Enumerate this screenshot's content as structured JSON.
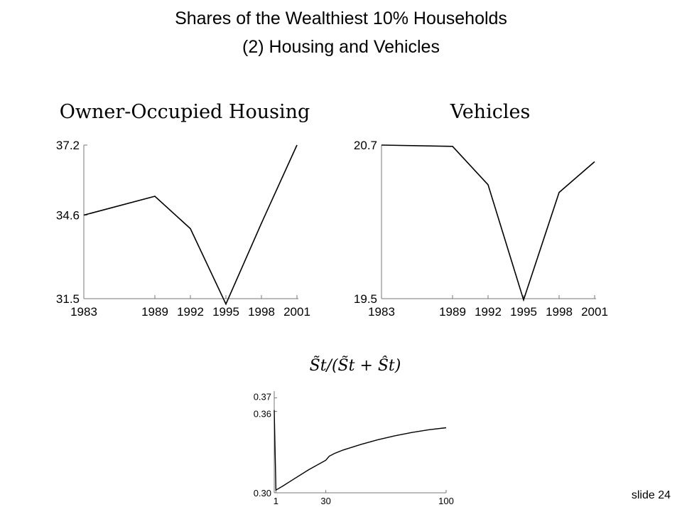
{
  "slide": {
    "title_line1": "Shares of the Wealthiest 10% Households",
    "title_line2": "(2) Housing and Vehicles",
    "slide_number": "slide 24"
  },
  "chart_data": [
    {
      "type": "line",
      "title": "Owner-Occupied Housing",
      "xlabel": "",
      "ylabel": "",
      "x": [
        1983,
        1989,
        1992,
        1995,
        1998,
        2001
      ],
      "x_ticks": [
        "1983",
        "1989",
        "1992",
        "1995",
        "1998",
        "2001"
      ],
      "y_ticks": [
        "31.5",
        "34.6",
        "37.2"
      ],
      "ylim": [
        31.5,
        37.2
      ],
      "series": [
        {
          "values": [
            34.6,
            35.3,
            34.1,
            31.3,
            34.3,
            37.2
          ]
        }
      ],
      "grid": false
    },
    {
      "type": "line",
      "title": "Vehicles",
      "xlabel": "",
      "ylabel": "",
      "x": [
        1983,
        1989,
        1992,
        1995,
        1998,
        2001
      ],
      "x_ticks": [
        "1983",
        "1989",
        "1992",
        "1995",
        "1998",
        "2001"
      ],
      "y_ticks": [
        "19.5",
        "20.7"
      ],
      "ylim": [
        19.5,
        20.7
      ],
      "series": [
        {
          "values": [
            20.7,
            20.69,
            20.39,
            19.49,
            20.33,
            20.57
          ]
        }
      ],
      "grid": false
    },
    {
      "type": "line",
      "title": "S̃t/(S̃t + Ŝt)",
      "xlabel": "",
      "ylabel": "",
      "x_ticks": [
        "1",
        "30",
        "100"
      ],
      "y_ticks": [
        "0.30",
        "0.36",
        "0.37"
      ],
      "xlim": [
        0,
        100
      ],
      "ylim": [
        0.3,
        0.375
      ],
      "series": [
        {
          "x": [
            0,
            1,
            5,
            10,
            20,
            30,
            32,
            35,
            40,
            50,
            60,
            70,
            80,
            90,
            100
          ],
          "values": [
            0.361,
            0.302,
            0.305,
            0.309,
            0.317,
            0.324,
            0.327,
            0.329,
            0.3315,
            0.3355,
            0.339,
            0.342,
            0.3445,
            0.3465,
            0.348
          ]
        }
      ],
      "grid": false
    }
  ]
}
